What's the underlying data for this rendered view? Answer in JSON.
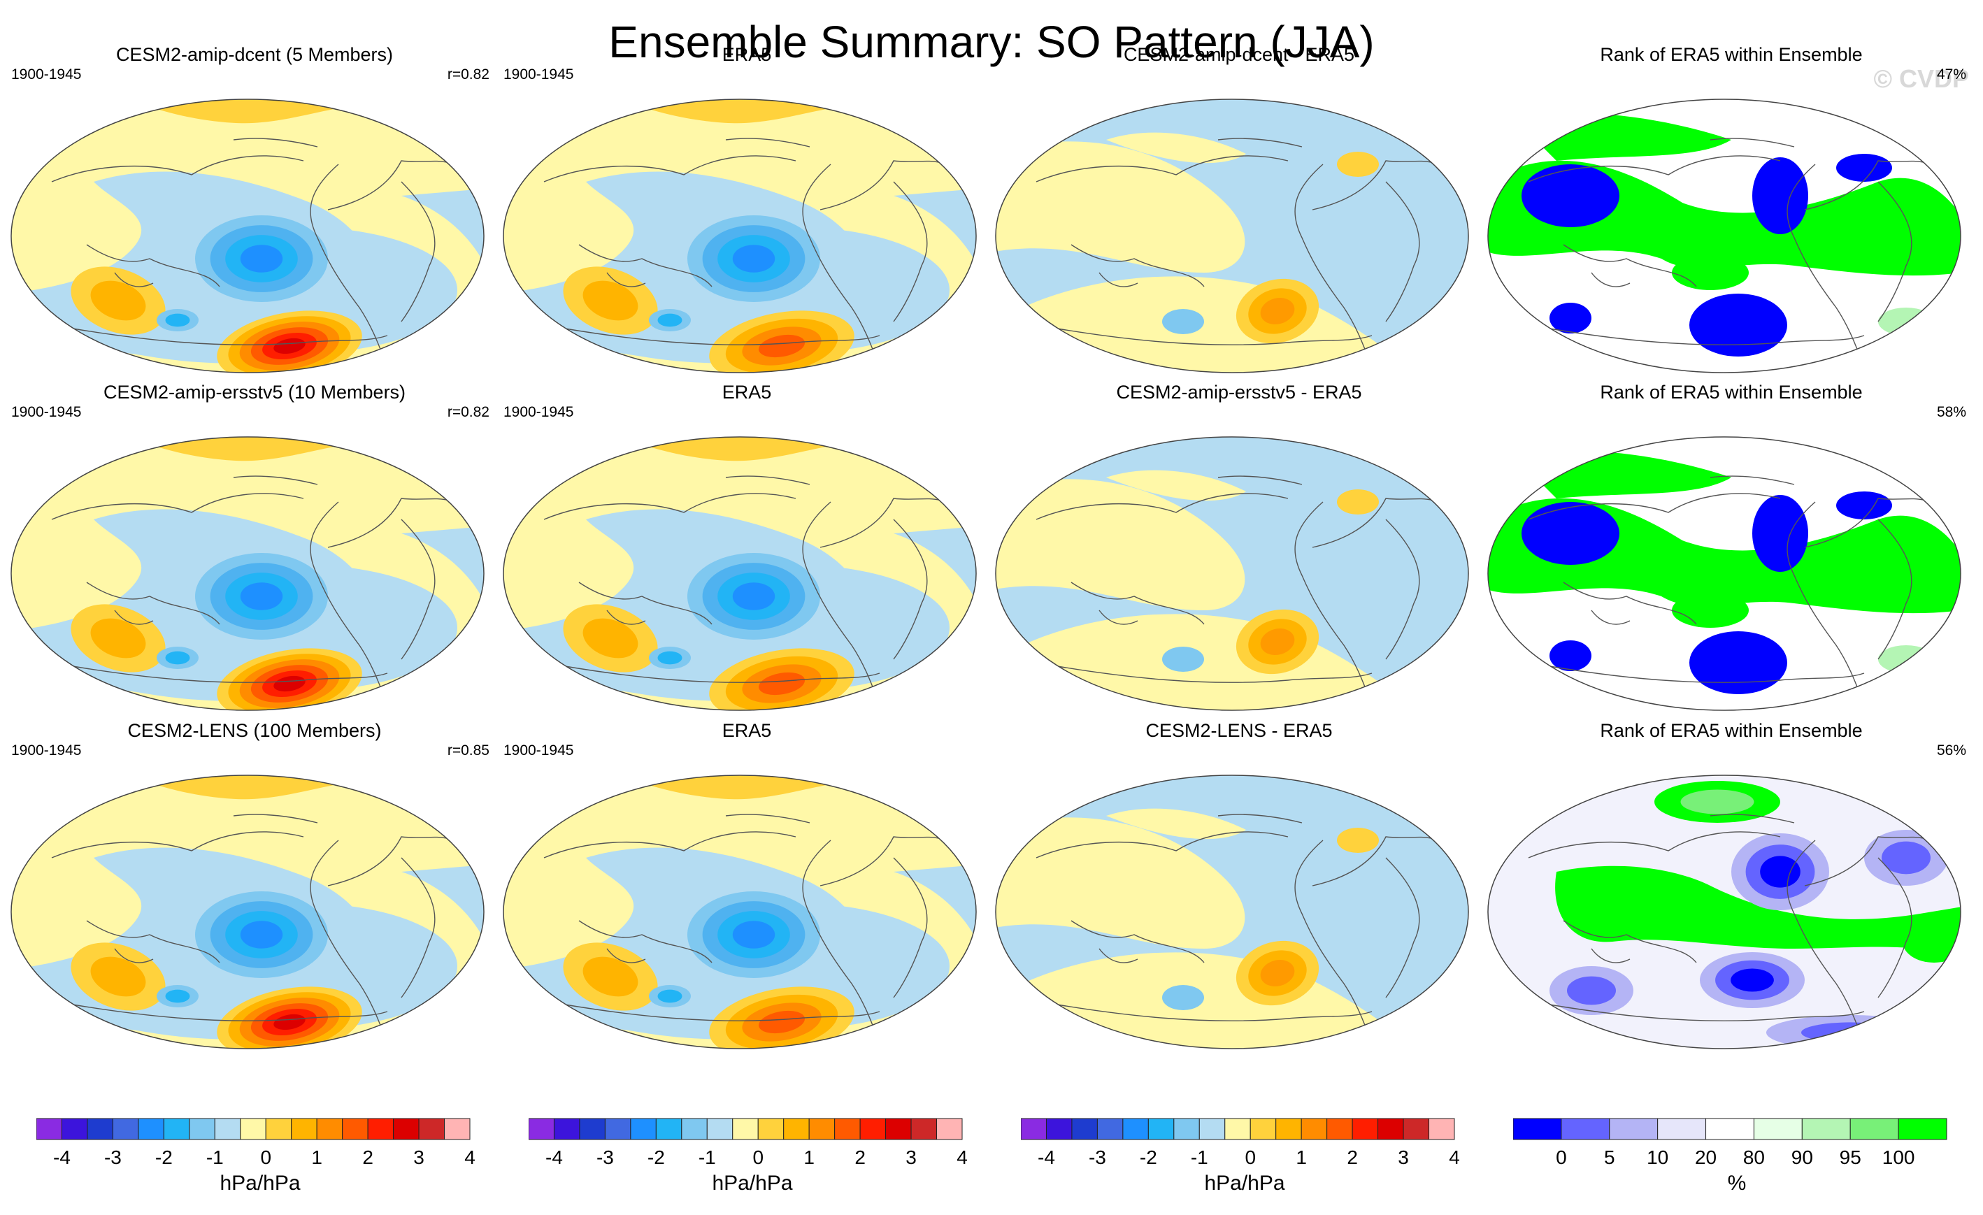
{
  "title": "Ensemble Summary: SO Pattern (JJA)",
  "watermark": "© CVDP",
  "rows": [
    {
      "model": {
        "title": "CESM2-amip-dcent (5 Members)",
        "period": "1900-1945",
        "stat": "r=0.82"
      },
      "obs": {
        "title": "ERA5",
        "period": "1900-1945"
      },
      "diff": {
        "title": "CESM2-amip-dcent - ERA5"
      },
      "rank": {
        "title": "Rank of ERA5 within Ensemble",
        "stat": "47%"
      }
    },
    {
      "model": {
        "title": "CESM2-amip-ersstv5 (10 Members)",
        "period": "1900-1945",
        "stat": "r=0.82"
      },
      "obs": {
        "title": "ERA5",
        "period": "1900-1945"
      },
      "diff": {
        "title": "CESM2-amip-ersstv5 - ERA5"
      },
      "rank": {
        "title": "Rank of ERA5 within Ensemble",
        "stat": "58%"
      }
    },
    {
      "model": {
        "title": "CESM2-LENS (100 Members)",
        "period": "1900-1945",
        "stat": "r=0.85"
      },
      "obs": {
        "title": "ERA5",
        "period": "1900-1945"
      },
      "diff": {
        "title": "CESM2-LENS - ERA5"
      },
      "rank": {
        "title": "Rank of ERA5 within Ensemble",
        "stat": "56%"
      }
    }
  ],
  "colorbar_pressure": {
    "unit": "hPa/hPa",
    "ticks": [
      "-4",
      "-3",
      "-2",
      "-1",
      "0",
      "1",
      "2",
      "3",
      "4"
    ],
    "colors": [
      "#8a2be2",
      "#3c14dc",
      "#1e3ccf",
      "#4169e1",
      "#1e90ff",
      "#22b4f5",
      "#7fc8f0",
      "#b4dcf2",
      "#fff8a8",
      "#ffd23c",
      "#ffb400",
      "#ff8c00",
      "#ff5a00",
      "#ff1e00",
      "#dc0000",
      "#cd2828",
      "#ffb4b4"
    ]
  },
  "colorbar_rank": {
    "unit": "%",
    "ticks": [
      "0",
      "5",
      "10",
      "20",
      "80",
      "90",
      "95",
      "100"
    ],
    "colors": [
      "#0000ff",
      "#6464ff",
      "#b4b4f5",
      "#e6e6fa",
      "#ffffff",
      "#e6ffe6",
      "#b4f5b4",
      "#78f078",
      "#00ff00"
    ]
  }
}
